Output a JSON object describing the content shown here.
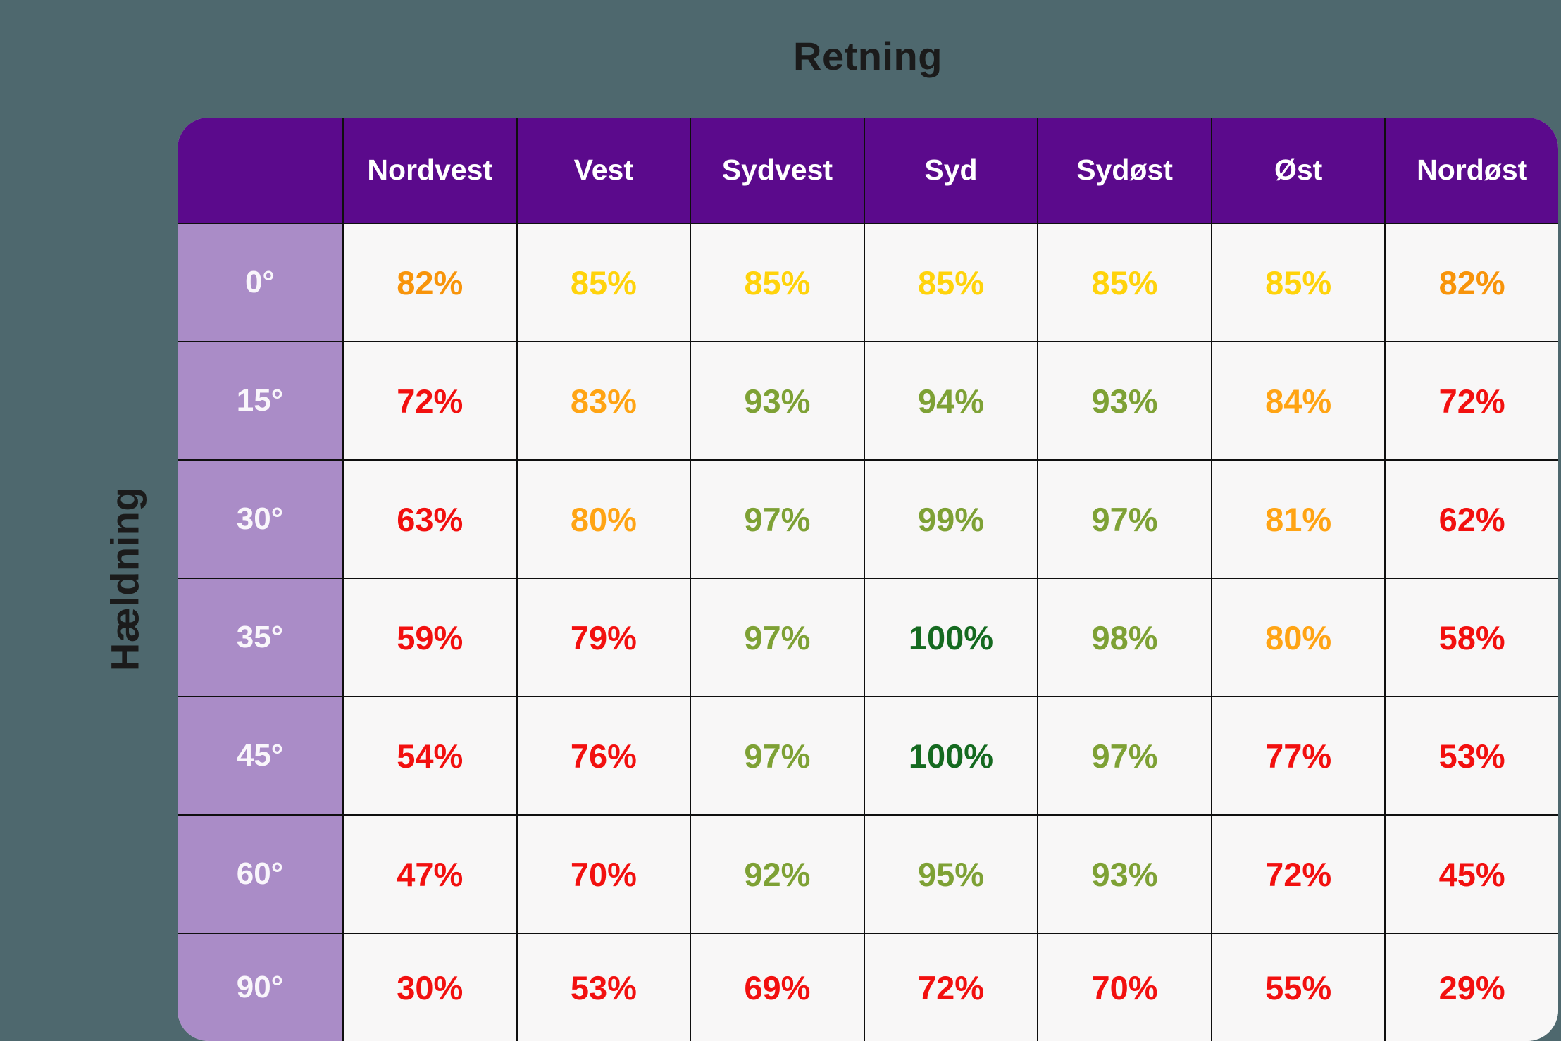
{
  "title": "Retning",
  "y_axis_label": "Hældning",
  "columns": [
    "Nordvest",
    "Vest",
    "Sydvest",
    "Syd",
    "Sydøst",
    "Øst",
    "Nordøst"
  ],
  "rows": [
    {
      "label": "0°",
      "cells": [
        {
          "text": "82%",
          "color": "orange_deep"
        },
        {
          "text": "85%",
          "color": "yellow"
        },
        {
          "text": "85%",
          "color": "yellow"
        },
        {
          "text": "85%",
          "color": "yellow"
        },
        {
          "text": "85%",
          "color": "yellow"
        },
        {
          "text": "85%",
          "color": "yellow"
        },
        {
          "text": "82%",
          "color": "orange_deep"
        }
      ]
    },
    {
      "label": "15°",
      "cells": [
        {
          "text": "72%",
          "color": "red"
        },
        {
          "text": "83%",
          "color": "orange"
        },
        {
          "text": "93%",
          "color": "green"
        },
        {
          "text": "94%",
          "color": "green"
        },
        {
          "text": "93%",
          "color": "green"
        },
        {
          "text": "84%",
          "color": "orange"
        },
        {
          "text": "72%",
          "color": "red"
        }
      ]
    },
    {
      "label": "30°",
      "cells": [
        {
          "text": "63%",
          "color": "red"
        },
        {
          "text": "80%",
          "color": "orange"
        },
        {
          "text": "97%",
          "color": "green"
        },
        {
          "text": "99%",
          "color": "green"
        },
        {
          "text": "97%",
          "color": "green"
        },
        {
          "text": "81%",
          "color": "orange"
        },
        {
          "text": "62%",
          "color": "red"
        }
      ]
    },
    {
      "label": "35°",
      "cells": [
        {
          "text": "59%",
          "color": "red"
        },
        {
          "text": "79%",
          "color": "red"
        },
        {
          "text": "97%",
          "color": "green"
        },
        {
          "text": "100%",
          "color": "green_dark"
        },
        {
          "text": "98%",
          "color": "green"
        },
        {
          "text": "80%",
          "color": "orange"
        },
        {
          "text": "58%",
          "color": "red"
        }
      ]
    },
    {
      "label": "45°",
      "cells": [
        {
          "text": "54%",
          "color": "red"
        },
        {
          "text": "76%",
          "color": "red"
        },
        {
          "text": "97%",
          "color": "green"
        },
        {
          "text": "100%",
          "color": "green_dark"
        },
        {
          "text": "97%",
          "color": "green"
        },
        {
          "text": "77%",
          "color": "red"
        },
        {
          "text": "53%",
          "color": "red"
        }
      ]
    },
    {
      "label": "60°",
      "cells": [
        {
          "text": "47%",
          "color": "red"
        },
        {
          "text": "70%",
          "color": "red"
        },
        {
          "text": "92%",
          "color": "green"
        },
        {
          "text": "95%",
          "color": "green"
        },
        {
          "text": "93%",
          "color": "green"
        },
        {
          "text": "72%",
          "color": "red"
        },
        {
          "text": "45%",
          "color": "red"
        }
      ]
    },
    {
      "label": "90°",
      "cells": [
        {
          "text": "30%",
          "color": "red"
        },
        {
          "text": "53%",
          "color": "red"
        },
        {
          "text": "69%",
          "color": "red"
        },
        {
          "text": "72%",
          "color": "red"
        },
        {
          "text": "70%",
          "color": "red"
        },
        {
          "text": "55%",
          "color": "red"
        },
        {
          "text": "29%",
          "color": "red"
        }
      ]
    }
  ],
  "palette": {
    "page_bg": "#4E686E",
    "header_bg": "#5B0A8C",
    "row_header_bg": "#AA8CC7",
    "cell_bg": "#F8F7F7",
    "grid_line": "#0F0F0F",
    "title_color": "#1B1B1B",
    "red": "#F2100F",
    "orange": "#FFA414",
    "orange_deep": "#F8940A",
    "yellow": "#FFD30B",
    "green": "#7EA135",
    "green_dark": "#156A20"
  },
  "chart_data": {
    "type": "heatmap",
    "title": "Retning",
    "ylabel": "Hældning",
    "columns": [
      "Nordvest",
      "Vest",
      "Sydvest",
      "Syd",
      "Sydøst",
      "Øst",
      "Nordøst"
    ],
    "row_labels": [
      "0°",
      "15°",
      "30°",
      "35°",
      "45°",
      "60°",
      "90°"
    ],
    "values_percent": [
      [
        82,
        85,
        85,
        85,
        85,
        85,
        82
      ],
      [
        72,
        83,
        93,
        94,
        93,
        84,
        72
      ],
      [
        63,
        80,
        97,
        99,
        97,
        81,
        62
      ],
      [
        59,
        79,
        97,
        100,
        98,
        80,
        58
      ],
      [
        54,
        76,
        97,
        100,
        97,
        77,
        53
      ],
      [
        47,
        70,
        92,
        95,
        93,
        72,
        45
      ],
      [
        30,
        53,
        69,
        72,
        70,
        55,
        29
      ]
    ],
    "legend_position": "none",
    "grid": true
  }
}
